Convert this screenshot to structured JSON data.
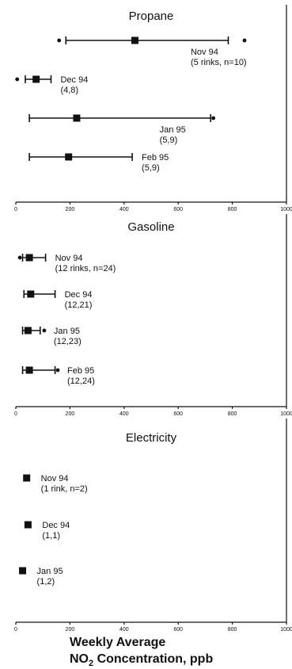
{
  "chart_data": [
    {
      "type": "scatter",
      "title": "Propane",
      "xlim": [
        0,
        1000
      ],
      "xticks": [
        "0",
        "200",
        "400",
        "600",
        "800",
        "1000"
      ],
      "series": [
        {
          "label": "Nov 94",
          "sublabel": "(5 rinks, n=10)",
          "mean": 440,
          "range": [
            185,
            785
          ],
          "extremes": [
            160,
            845
          ]
        },
        {
          "label": "Dec 94",
          "sublabel": "(4,8)",
          "mean": 75,
          "range": [
            35,
            130
          ],
          "extremes": [
            5
          ]
        },
        {
          "label": "Jan 95",
          "sublabel": "(5,9)",
          "mean": 225,
          "range": [
            50,
            720
          ],
          "extremes": [
            730
          ]
        },
        {
          "label": "Feb 95",
          "sublabel": "(5,9)",
          "mean": 195,
          "range": [
            50,
            430
          ],
          "extremes": []
        }
      ]
    },
    {
      "type": "scatter",
      "title": "Gasoline",
      "xlim": [
        0,
        1000
      ],
      "xticks": [
        "0",
        "200",
        "400",
        "600",
        "800",
        "1000"
      ],
      "series": [
        {
          "label": "Nov 94",
          "sublabel": "(12 rinks, n=24)",
          "mean": 50,
          "range": [
            25,
            110
          ],
          "extremes": [
            15
          ]
        },
        {
          "label": "Dec 94",
          "sublabel": "(12,21)",
          "mean": 55,
          "range": [
            30,
            145
          ],
          "extremes": []
        },
        {
          "label": "Jan 95",
          "sublabel": "(12,23)",
          "mean": 45,
          "range": [
            25,
            90
          ],
          "extremes": [
            105
          ]
        },
        {
          "label": "Feb 95",
          "sublabel": "(12,24)",
          "mean": 50,
          "range": [
            25,
            145
          ],
          "extremes": [
            155
          ]
        }
      ]
    },
    {
      "type": "scatter",
      "title": "Electricity",
      "xlim": [
        0,
        1000
      ],
      "xticks": [
        "0",
        "200",
        "400",
        "600",
        "800",
        "1000"
      ],
      "series": [
        {
          "label": "Nov 94",
          "sublabel": "(1 rink, n=2)",
          "mean": 40,
          "range": null,
          "extremes": []
        },
        {
          "label": "Dec 94",
          "sublabel": "(1,1)",
          "mean": 45,
          "range": null,
          "extremes": []
        },
        {
          "label": "Jan 95",
          "sublabel": "(1,2)",
          "mean": 25,
          "range": null,
          "extremes": []
        }
      ]
    }
  ],
  "xlabel_line1": "Weekly Average",
  "xlabel_line2_pre": "NO",
  "xlabel_line2_sub": "2",
  "xlabel_line2_post": " Concentration, ppb"
}
